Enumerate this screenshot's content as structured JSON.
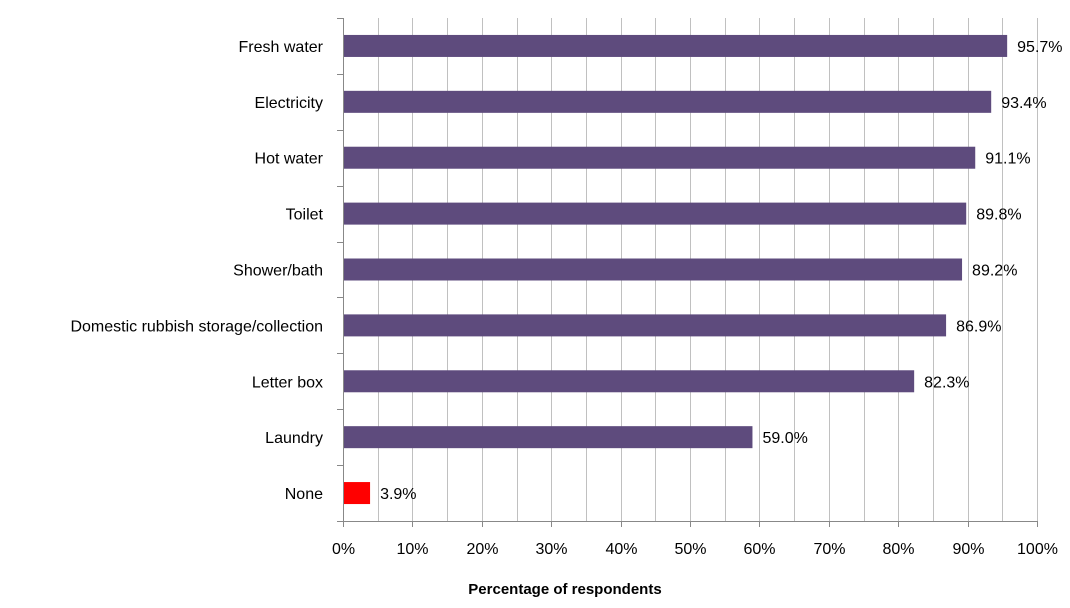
{
  "chart_data": {
    "type": "bar",
    "orientation": "horizontal",
    "categories": [
      "Fresh water",
      "Electricity",
      "Hot water",
      "Toilet",
      "Shower/bath",
      "Domestic rubbish storage/collection",
      "Letter box",
      "Laundry",
      "None"
    ],
    "values": [
      95.7,
      93.4,
      91.1,
      89.8,
      89.2,
      86.9,
      82.3,
      59.0,
      3.9
    ],
    "value_labels": [
      "95.7%",
      "93.4%",
      "91.1%",
      "89.8%",
      "89.2%",
      "86.9%",
      "82.3%",
      "59.0%",
      "3.9%"
    ],
    "bar_colors": [
      "#5e4b7d",
      "#5e4b7d",
      "#5e4b7d",
      "#5e4b7d",
      "#5e4b7d",
      "#5e4b7d",
      "#5e4b7d",
      "#5e4b7d",
      "#ff0000"
    ],
    "xlim": [
      0,
      100
    ],
    "xticks": [
      0,
      10,
      20,
      30,
      40,
      50,
      60,
      70,
      80,
      90,
      100
    ],
    "xtick_labels": [
      "0%",
      "10%",
      "20%",
      "30%",
      "40%",
      "50%",
      "60%",
      "70%",
      "80%",
      "90%",
      "100%"
    ],
    "xlabel": "Percentage of respondents",
    "ylabel": "",
    "title": "",
    "grid": "vertical",
    "legend": "none",
    "colors": {
      "bar": "#5e4b7d",
      "highlight": "#ff0000",
      "grid": "#c0c0c0",
      "axis": "#888888"
    }
  }
}
